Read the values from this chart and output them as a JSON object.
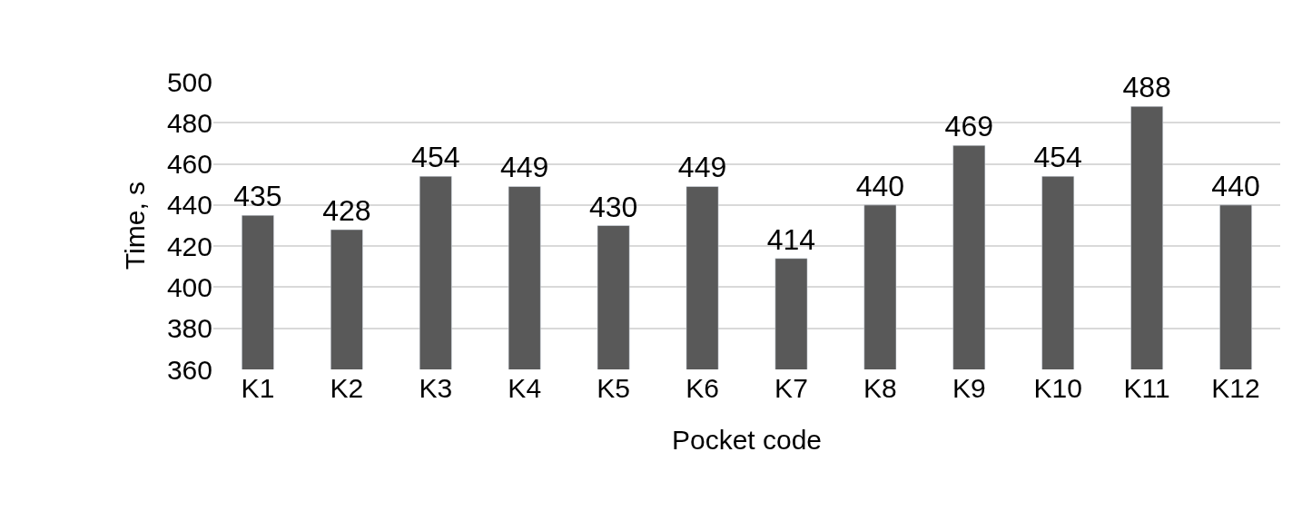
{
  "chart_data": {
    "type": "bar",
    "xlabel": "Pocket code",
    "ylabel": "Time, s",
    "categories": [
      "K1",
      "K2",
      "K3",
      "K4",
      "K5",
      "K6",
      "K7",
      "K8",
      "K9",
      "K10",
      "K11",
      "K12"
    ],
    "values": [
      435,
      428,
      454,
      449,
      430,
      449,
      414,
      440,
      469,
      454,
      488,
      440
    ],
    "color": "#595959",
    "ylim": [
      360,
      500
    ],
    "yticks": [
      360,
      380,
      400,
      420,
      440,
      460,
      480,
      500
    ],
    "grid": "y",
    "data_labels": true
  }
}
